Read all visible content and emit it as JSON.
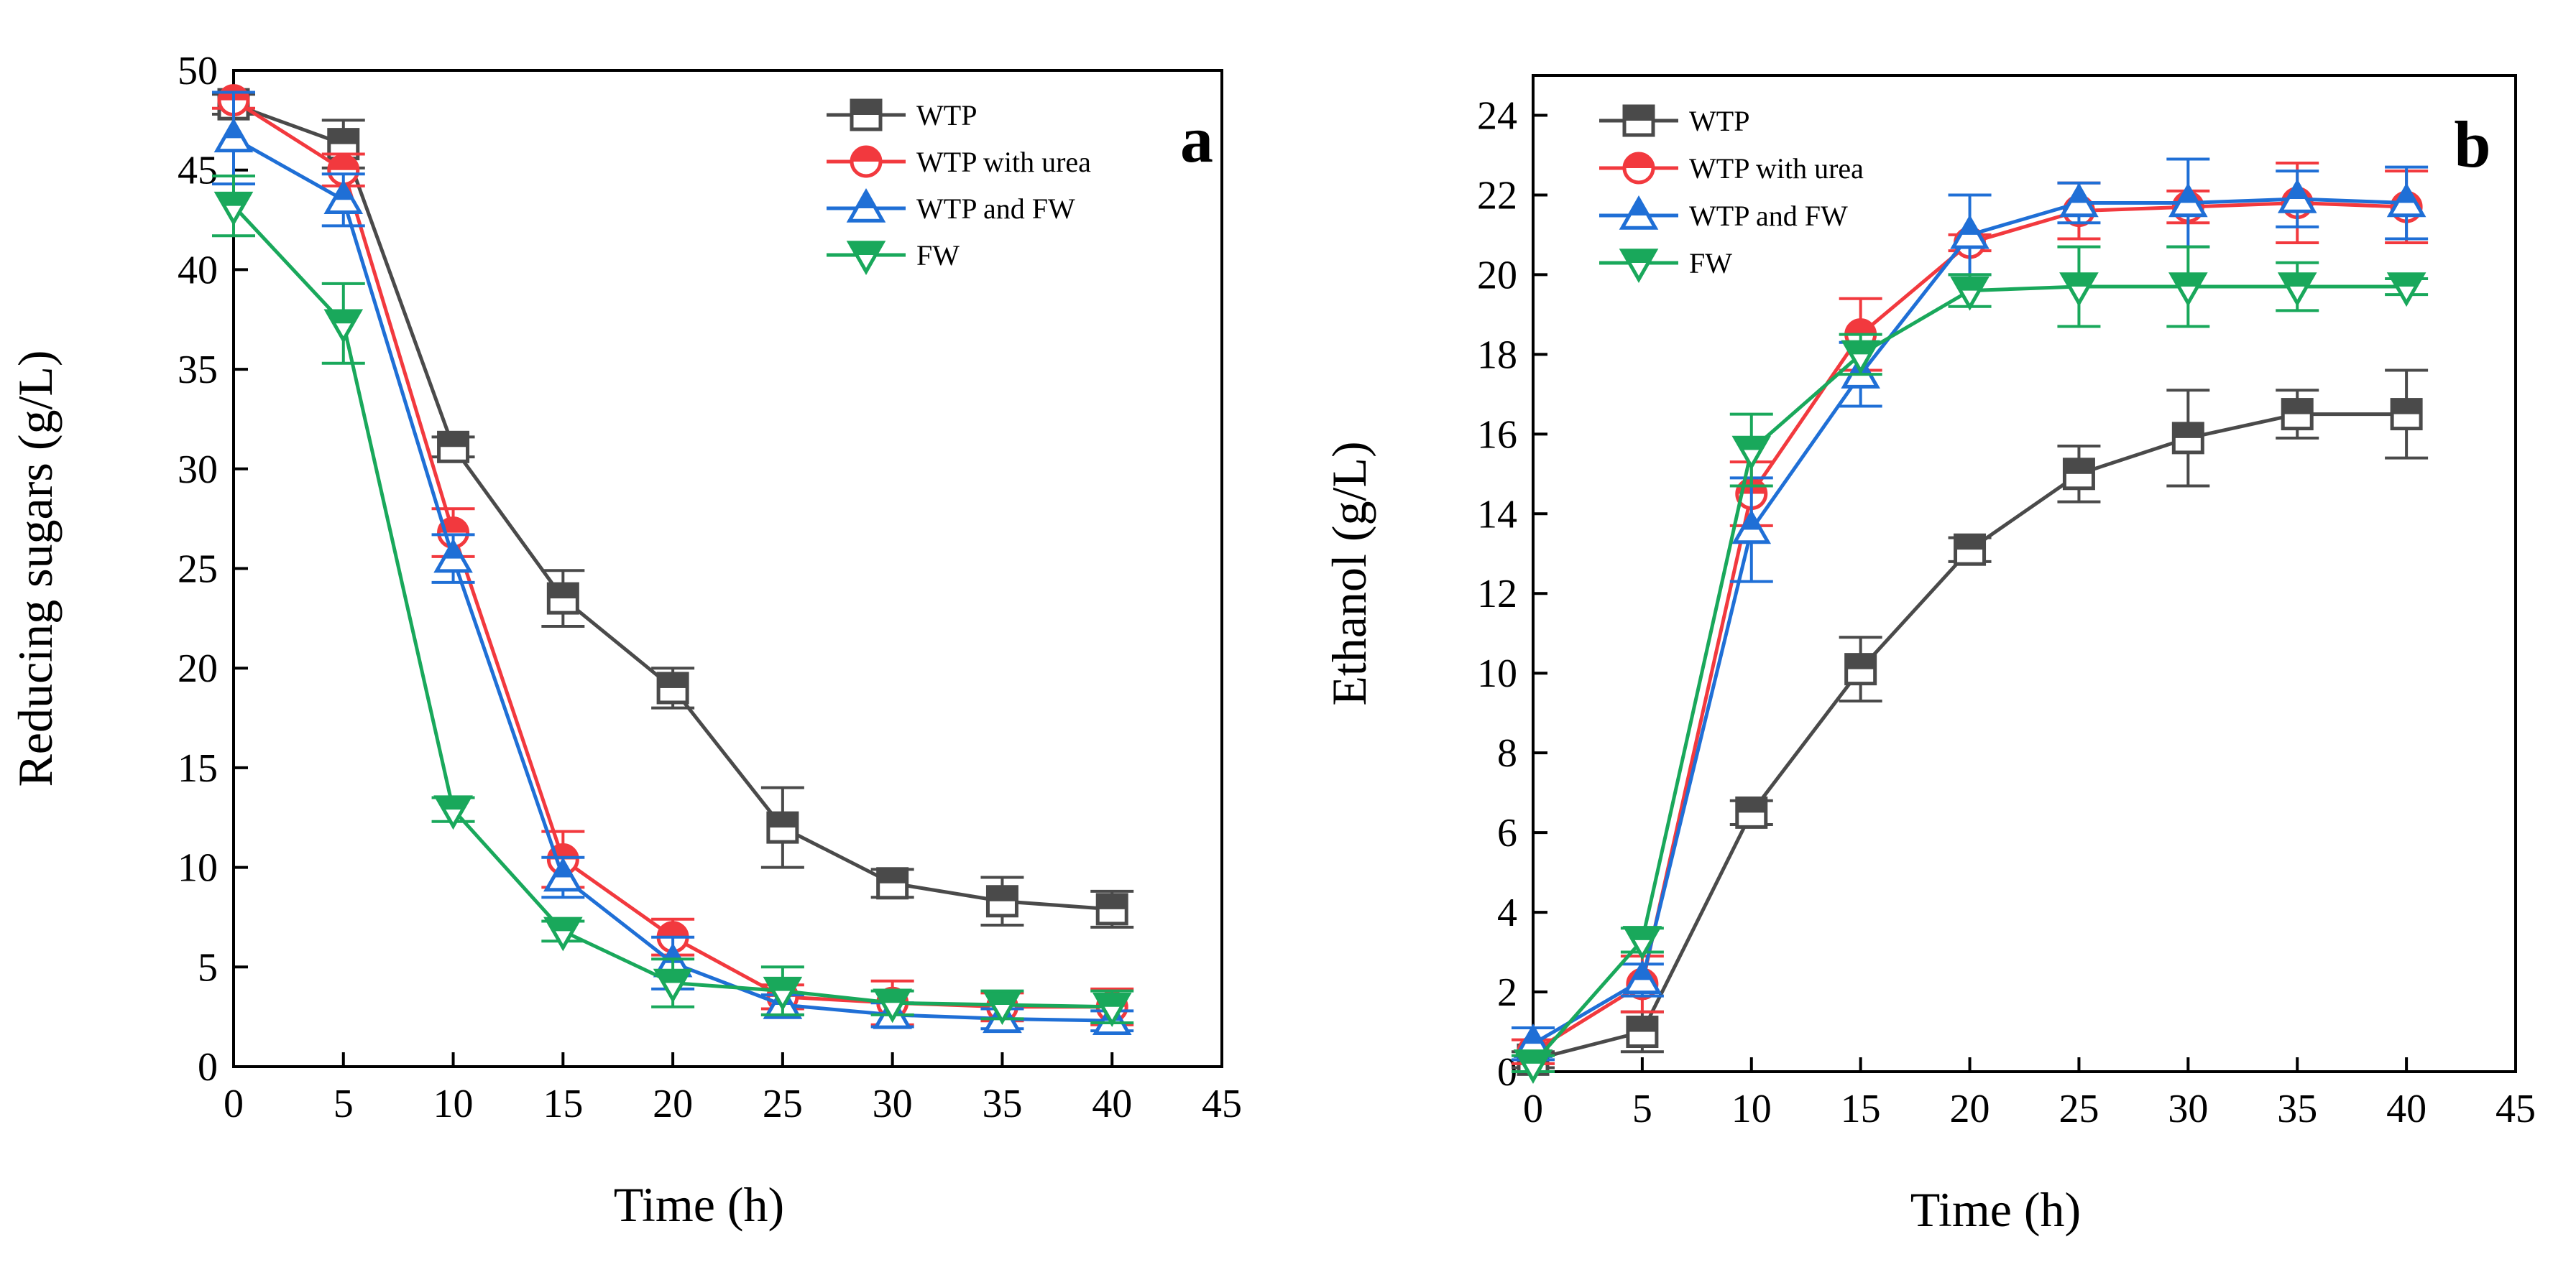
{
  "chart_data": [
    {
      "type": "line",
      "panel_label": "a",
      "xlabel": "Time (h)",
      "ylabel": "Reducing sugars (g/L)",
      "xlim": [
        0,
        45
      ],
      "ylim": [
        0,
        50
      ],
      "xticks": [
        0,
        5,
        10,
        15,
        20,
        25,
        30,
        35,
        40,
        45
      ],
      "yticks": [
        0,
        5,
        10,
        15,
        20,
        25,
        30,
        35,
        40,
        45,
        50
      ],
      "legend_position": "top-right",
      "x": [
        0,
        5,
        10,
        15,
        20,
        25,
        30,
        35,
        40
      ],
      "series": [
        {
          "name": "WTP",
          "color": "#4a4a4a",
          "marker": "square",
          "values": [
            48.3,
            46.3,
            31.1,
            23.5,
            19.0,
            12.0,
            9.2,
            8.3,
            7.9
          ],
          "errors": [
            0.5,
            1.2,
            0.5,
            1.4,
            1.0,
            2.0,
            0.7,
            1.2,
            0.9
          ]
        },
        {
          "name": "WTP with urea",
          "color": "#f2393e",
          "marker": "circle",
          "values": [
            48.5,
            45.0,
            26.8,
            10.4,
            6.5,
            3.5,
            3.2,
            3.0,
            3.0
          ],
          "errors": [
            0.4,
            0.8,
            1.2,
            1.4,
            0.9,
            0.6,
            1.1,
            0.7,
            0.9
          ]
        },
        {
          "name": "WTP and FW",
          "color": "#1f6fd6",
          "marker": "triangle-up",
          "values": [
            46.6,
            43.5,
            25.5,
            9.5,
            5.2,
            3.1,
            2.6,
            2.4,
            2.3
          ],
          "errors": [
            2.3,
            1.3,
            1.2,
            1.0,
            1.3,
            0.5,
            0.6,
            0.5,
            0.5
          ]
        },
        {
          "name": "FW",
          "color": "#19a85b",
          "marker": "triangle-down",
          "values": [
            43.2,
            37.3,
            12.9,
            6.8,
            4.2,
            3.8,
            3.2,
            3.1,
            3.0
          ],
          "errors": [
            1.5,
            2.0,
            0.6,
            0.5,
            1.2,
            1.2,
            0.6,
            0.7,
            0.8
          ]
        }
      ]
    },
    {
      "type": "line",
      "panel_label": "b",
      "xlabel": "Time (h)",
      "ylabel": "Ethanol (g/L)",
      "xlim": [
        0,
        45
      ],
      "ylim": [
        0,
        25
      ],
      "xticks": [
        0,
        5,
        10,
        15,
        20,
        25,
        30,
        35,
        40,
        45
      ],
      "yticks": [
        0,
        2,
        4,
        6,
        8,
        10,
        12,
        14,
        16,
        18,
        20,
        22,
        24
      ],
      "legend_position": "top-left",
      "x": [
        0,
        5,
        10,
        15,
        20,
        25,
        30,
        35,
        40
      ],
      "series": [
        {
          "name": "WTP",
          "color": "#4a4a4a",
          "marker": "square",
          "values": [
            0.3,
            1.0,
            6.5,
            10.1,
            13.1,
            15.0,
            15.9,
            16.5,
            16.5
          ],
          "errors": [
            0.2,
            0.5,
            0.3,
            0.8,
            0.3,
            0.7,
            1.2,
            0.6,
            1.1
          ]
        },
        {
          "name": "WTP with urea",
          "color": "#f2393e",
          "marker": "circle",
          "values": [
            0.5,
            2.2,
            14.5,
            18.5,
            20.8,
            21.6,
            21.7,
            21.8,
            21.7
          ],
          "errors": [
            0.3,
            0.7,
            0.8,
            0.9,
            0.2,
            0.7,
            0.4,
            1.0,
            0.9
          ]
        },
        {
          "name": "WTP and FW",
          "color": "#1f6fd6",
          "marker": "triangle-up",
          "values": [
            0.7,
            2.3,
            13.6,
            17.5,
            21.0,
            21.8,
            21.8,
            21.9,
            21.8
          ],
          "errors": [
            0.4,
            0.4,
            1.3,
            0.8,
            1.0,
            0.5,
            1.1,
            0.7,
            0.9
          ]
        },
        {
          "name": "FW",
          "color": "#19a85b",
          "marker": "triangle-down",
          "values": [
            0.2,
            3.3,
            15.6,
            18.0,
            19.6,
            19.7,
            19.7,
            19.7,
            19.7
          ],
          "errors": [
            0.2,
            0.3,
            0.9,
            0.5,
            0.4,
            1.0,
            1.0,
            0.6,
            0.2
          ]
        }
      ]
    }
  ]
}
